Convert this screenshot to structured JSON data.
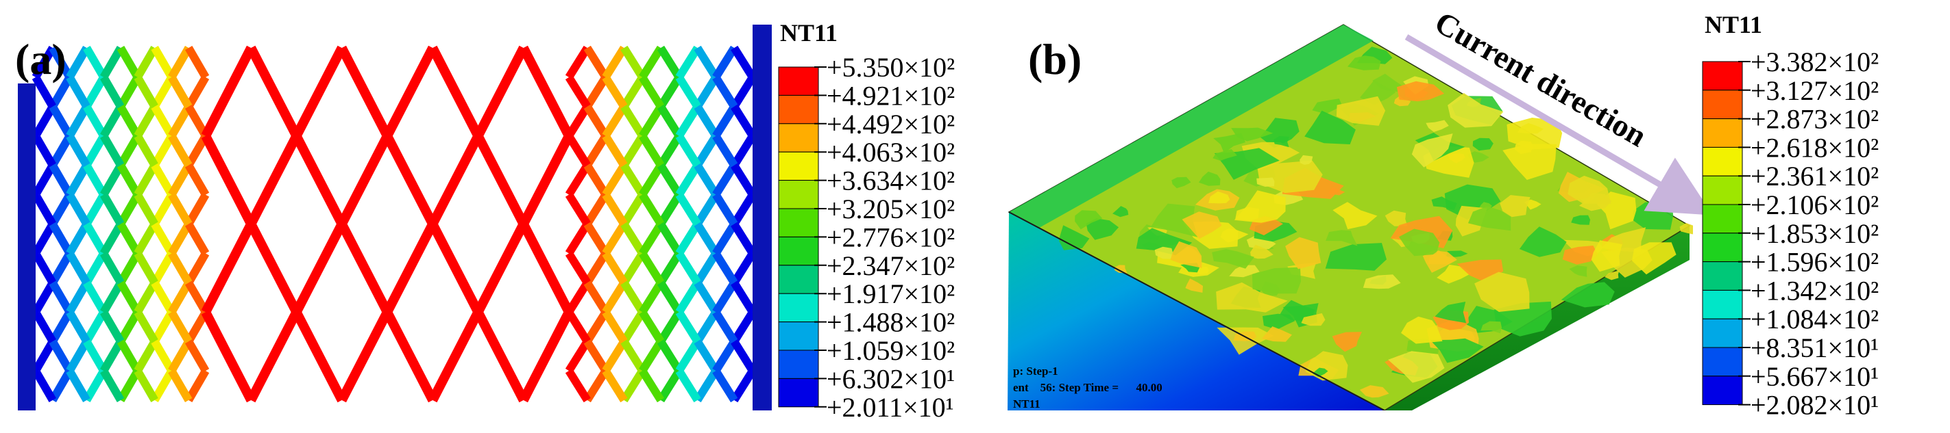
{
  "panel_a": {
    "label": "(a)",
    "legend": {
      "title": "NT11",
      "values": [
        "+5.350×10²",
        "+4.921×10²",
        "+4.492×10²",
        "+4.063×10²",
        "+3.634×10²",
        "+3.205×10²",
        "+2.776×10²",
        "+2.347×10²",
        "+1.917×10²",
        "+1.488×10²",
        "+1.059×10²",
        "+6.302×10¹",
        "+2.011×10¹"
      ]
    }
  },
  "panel_b": {
    "label": "(b)",
    "annotation": "Current direction",
    "overlay_lines": [
      "p: Step-1",
      "ent    56: Step Time =      40.00",
      "NT11"
    ],
    "legend": {
      "title": "NT11",
      "values": [
        "+3.382×10²",
        "+3.127×10²",
        "+2.873×10²",
        "+2.618×10²",
        "+2.361×10²",
        "+2.106×10²",
        "+1.853×10²",
        "+1.596×10²",
        "+1.342×10²",
        "+1.084×10²",
        "+8.351×10¹",
        "+5.667×10¹",
        "+2.082×10¹"
      ]
    }
  },
  "colors": {
    "scale": [
      "#ff0000",
      "#ff5a00",
      "#ffad00",
      "#f2f200",
      "#9ee600",
      "#4fdc00",
      "#1ed21e",
      "#00c878",
      "#00e6c8",
      "#00a8e6",
      "#0050f0",
      "#0000e6"
    ],
    "bar": "#0a14b4",
    "arrow": "#c8b4dc"
  }
}
